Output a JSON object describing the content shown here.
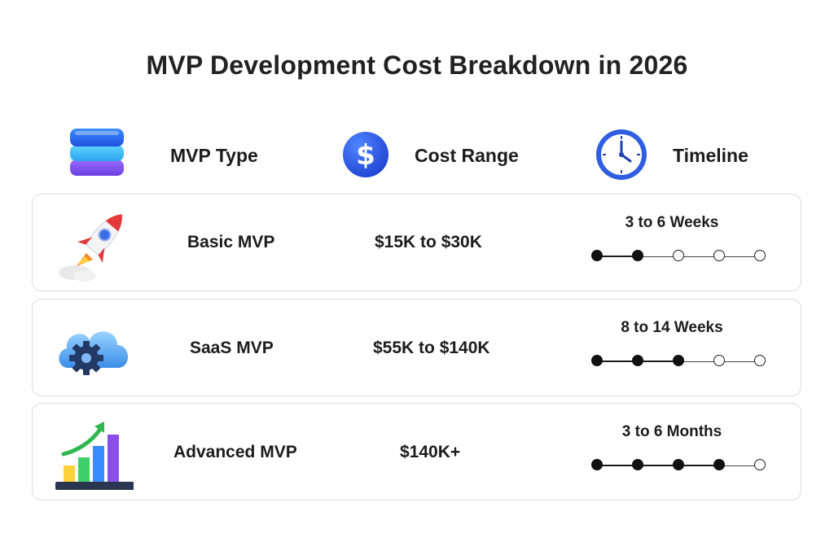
{
  "title": "MVP Development Cost Breakdown in 2026",
  "headers": {
    "type": "MVP Type",
    "cost": "Cost Range",
    "timeline": "Timeline"
  },
  "colors": {
    "accent_blue": "#2f5fe0",
    "text": "#1c1c1c",
    "card_border": "#dcdcdc"
  },
  "rows": [
    {
      "icon": "rocket-icon",
      "type": "Basic MVP",
      "cost": "$15K to $30K",
      "timeline": "3 to 6 Weeks",
      "filled_steps": 2,
      "total_steps": 5
    },
    {
      "icon": "cloud-gear-icon",
      "type": "SaaS MVP",
      "cost": "$55K to $140K",
      "timeline": "8 to 14 Weeks",
      "filled_steps": 3,
      "total_steps": 5
    },
    {
      "icon": "growth-chart-icon",
      "type": "Advanced MVP",
      "cost": "$140K+",
      "timeline": "3 to 6 Months",
      "filled_steps": 4,
      "total_steps": 5
    }
  ]
}
